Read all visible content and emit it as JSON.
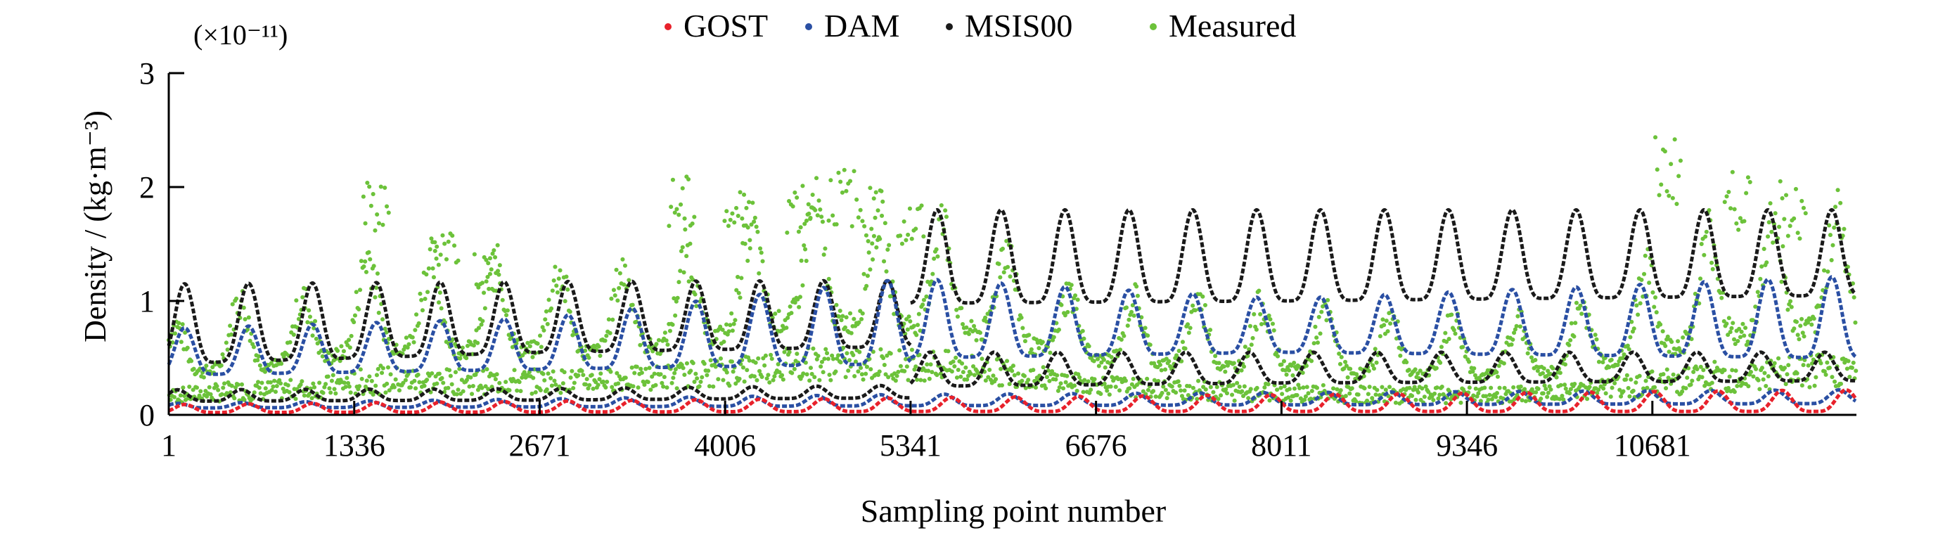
{
  "chart_data": {
    "type": "scatter",
    "title": "",
    "xlabel": "Sampling point number",
    "ylabel": "Density / (kg·m⁻³)",
    "y_multiplier": "(×10⁻¹¹)",
    "xlim": [
      1,
      12150
    ],
    "ylim": [
      0,
      3
    ],
    "x_ticks": [
      1,
      1336,
      2671,
      4006,
      5341,
      6676,
      8011,
      9346,
      10681
    ],
    "x_tick_labels": [
      "1",
      "1336",
      "2671",
      "4006",
      "5341",
      "6676",
      "8011",
      "9346",
      "10681"
    ],
    "y_ticks": [
      0,
      1,
      2,
      3
    ],
    "y_tick_labels": [
      "0",
      "1",
      "2",
      "3"
    ],
    "legend_position": "top-center",
    "colors": {
      "GOST": "#e8212b",
      "DAM": "#2a4fa3",
      "MSIS00": "#1a1a1a",
      "Measured": "#6cc23a"
    },
    "series": [
      {
        "name": "GOST",
        "orbit_period_points": 460,
        "segments": [
          {
            "x_range": [
              1,
              12150
            ],
            "envelope": {
              "x": [
                1,
                5341,
                12150
              ],
              "min": [
                0.02,
                0.03,
                0.03
              ],
              "max": [
                0.09,
                0.15,
                0.22
              ]
            }
          }
        ]
      },
      {
        "name": "DAM",
        "orbit_period_points": 460,
        "segments": [
          {
            "x_range": [
              1,
              5341
            ],
            "envelope": {
              "x": [
                1,
                2671,
                5341
              ],
              "min": [
                0.35,
                0.4,
                0.45
              ],
              "max": [
                0.76,
                0.85,
                1.2
              ]
            }
          },
          {
            "x_range": [
              1,
              12150
            ],
            "envelope": {
              "x": [
                1,
                5341,
                12150
              ],
              "min": [
                0.06,
                0.08,
                0.1
              ],
              "max": [
                0.1,
                0.18,
                0.22
              ]
            }
          },
          {
            "x_range": [
              5341,
              12150
            ],
            "envelope": {
              "x": [
                5341,
                8011,
                12150
              ],
              "min": [
                0.5,
                0.55,
                0.5
              ],
              "max": [
                1.2,
                1.02,
                1.22
              ]
            }
          }
        ]
      },
      {
        "name": "MSIS00",
        "orbit_period_points": 460,
        "segments": [
          {
            "x_range": [
              1,
              5341
            ],
            "envelope": {
              "x": [
                1,
                2671,
                5341
              ],
              "min": [
                0.45,
                0.55,
                0.6
              ],
              "max": [
                1.15,
                1.17,
                1.18
              ]
            }
          },
          {
            "x_range": [
              1,
              5341
            ],
            "envelope": {
              "x": [
                1,
                2671,
                5341
              ],
              "min": [
                0.12,
                0.13,
                0.15
              ],
              "max": [
                0.22,
                0.23,
                0.26
              ]
            }
          },
          {
            "x_range": [
              5341,
              12150
            ],
            "envelope": {
              "x": [
                5341,
                8011,
                12150
              ],
              "min": [
                0.98,
                1.0,
                1.05
              ],
              "max": [
                1.8,
                1.8,
                1.8
              ]
            }
          },
          {
            "x_range": [
              5341,
              12150
            ],
            "envelope": {
              "x": [
                5341,
                8011,
                12150
              ],
              "min": [
                0.25,
                0.28,
                0.3
              ],
              "max": [
                0.55,
                0.55,
                0.55
              ]
            }
          }
        ]
      },
      {
        "name": "Measured",
        "samples": {
          "x": [
            1,
            500,
            1000,
            1500,
            2000,
            2500,
            3000,
            3500,
            4000,
            4500,
            5000,
            5500,
            6000,
            6500,
            7000,
            7500,
            8000,
            8500,
            9000,
            9500,
            10000,
            10500,
            11000,
            11500,
            12150
          ],
          "upper": [
            0.75,
            1.0,
            1.0,
            1.45,
            1.3,
            1.3,
            1.2,
            1.3,
            1.55,
            1.85,
            1.75,
            1.7,
            1.5,
            1.05,
            1.0,
            1.0,
            0.95,
            0.85,
            0.85,
            0.8,
            0.85,
            1.15,
            1.55,
            1.7,
            1.8
          ],
          "lower": [
            0.1,
            0.12,
            0.14,
            0.18,
            0.18,
            0.18,
            0.2,
            0.22,
            0.25,
            0.3,
            0.3,
            0.3,
            0.25,
            0.2,
            0.15,
            0.12,
            0.12,
            0.1,
            0.1,
            0.1,
            0.12,
            0.15,
            0.18,
            0.2,
            0.25
          ]
        },
        "spikes": [
          {
            "x": 1500,
            "y": 2.05
          },
          {
            "x": 2000,
            "y": 1.7
          },
          {
            "x": 2300,
            "y": 1.45
          },
          {
            "x": 3700,
            "y": 2.1
          },
          {
            "x": 4100,
            "y": 2.0
          },
          {
            "x": 4550,
            "y": 2.1
          },
          {
            "x": 4850,
            "y": 2.18
          },
          {
            "x": 5050,
            "y": 2.0
          },
          {
            "x": 5350,
            "y": 1.9
          },
          {
            "x": 10800,
            "y": 2.45
          },
          {
            "x": 11300,
            "y": 2.15
          },
          {
            "x": 11700,
            "y": 2.05
          }
        ]
      }
    ]
  }
}
